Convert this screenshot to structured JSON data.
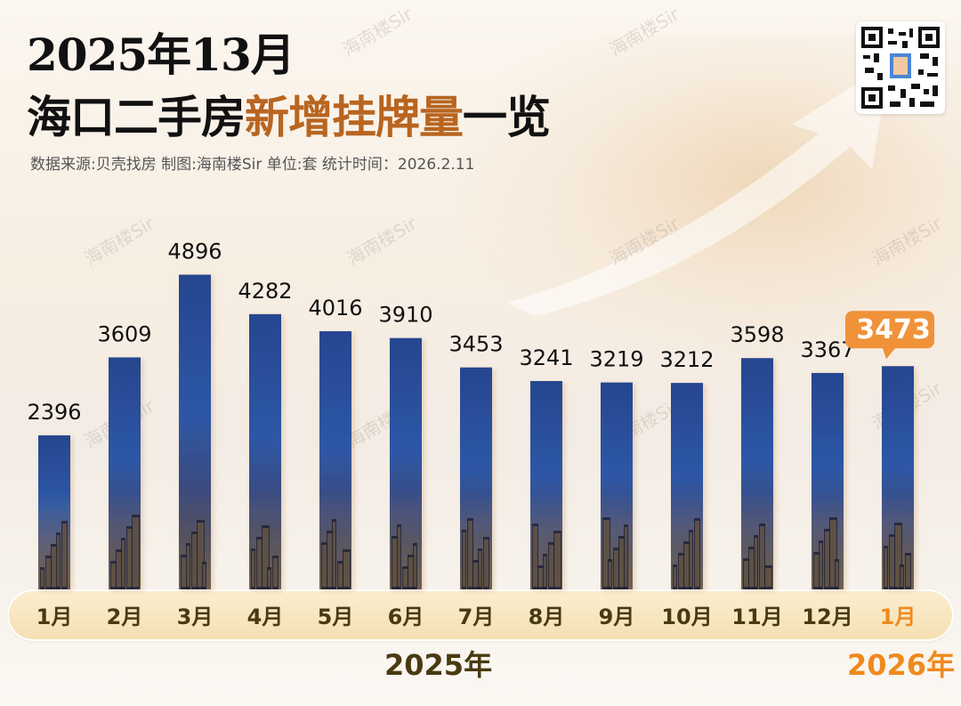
{
  "title_line1": "2025年13月",
  "title_line2_main": "海口二手房",
  "title_line2_accent": "新增挂牌量",
  "title_line2_tail": "一览",
  "subtitle": "数据来源:贝壳找房    制图:海南楼Sir    单位:套  统计时间：2026.2.11",
  "watermark_text": "海南楼Sir",
  "colors": {
    "bar_top": "#27468f",
    "bar_mid": "#2d57a6",
    "label": "#111111",
    "highlight_callout": "#f0923a",
    "accent_title": "#b86520",
    "year_2025": "#4a3a12",
    "year_2026": "#ef8a1e",
    "month_text": "#4a3a12",
    "month_highlight": "#ef8a1e"
  },
  "chart_data": {
    "type": "bar",
    "categories": [
      "1月",
      "2月",
      "3月",
      "4月",
      "5月",
      "6月",
      "7月",
      "8月",
      "9月",
      "10月",
      "11月",
      "12月",
      "1月"
    ],
    "values": [
      2396,
      3609,
      4896,
      4282,
      4016,
      3910,
      3453,
      3241,
      3219,
      3212,
      3598,
      3367,
      3473
    ],
    "highlight_index": 12,
    "year_groups": [
      {
        "label": "2025年",
        "from": 0,
        "to": 11
      },
      {
        "label": "2026年",
        "from": 12,
        "to": 12
      }
    ],
    "ylim": [
      0,
      5000
    ],
    "grid": false,
    "data_labels": true
  }
}
